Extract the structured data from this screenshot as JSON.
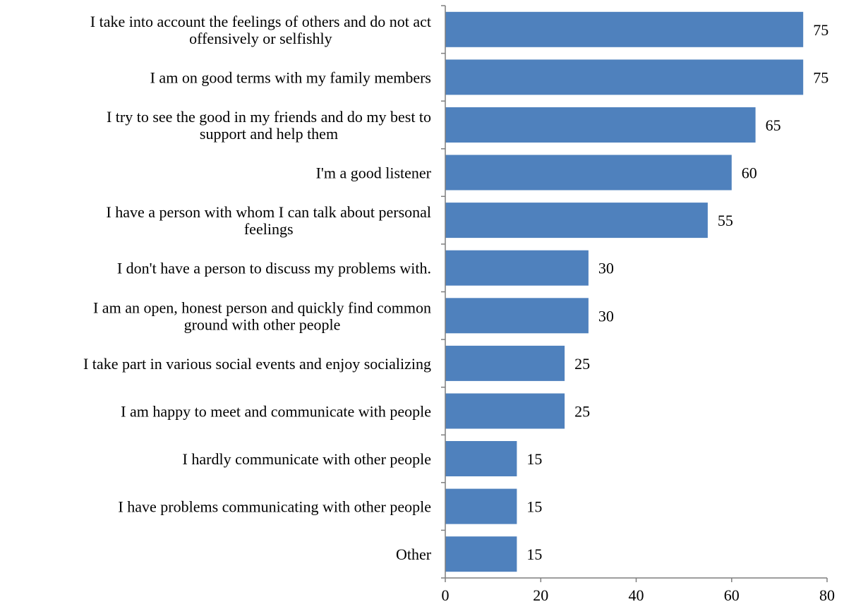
{
  "chart_data": {
    "type": "bar",
    "orientation": "horizontal",
    "categories": [
      [
        "I take into account the feelings of others and do not act",
        "offensively or selfishly"
      ],
      [
        "I am on good terms with my family members"
      ],
      [
        "I try to see the good in my friends and do my best to",
        "support and help them"
      ],
      [
        "I'm a good listener"
      ],
      [
        "I have a person with whom I can talk about personal",
        "feelings"
      ],
      [
        "I don't have a person to discuss my problems with."
      ],
      [
        "I am an open, honest person and quickly find common",
        "ground with other people"
      ],
      [
        "I take part in various social events and enjoy socializing"
      ],
      [
        "I am happy to meet and communicate with people"
      ],
      [
        "I hardly communicate with other people"
      ],
      [
        "I have problems communicating with other people"
      ],
      [
        "Other"
      ]
    ],
    "values": [
      75,
      75,
      65,
      60,
      55,
      30,
      30,
      25,
      25,
      15,
      15,
      15
    ],
    "data_labels": [
      "75",
      "75",
      "65",
      "60",
      "55",
      "30",
      "30",
      "25",
      "25",
      "15",
      "15",
      "15"
    ],
    "xlim": [
      0,
      80
    ],
    "xticks": [
      0,
      20,
      40,
      60,
      80
    ],
    "xtick_labels": [
      "0",
      "20",
      "40",
      "60",
      "80"
    ],
    "title": "",
    "xlabel": "",
    "ylabel": "",
    "grid": false,
    "legend": "none",
    "bar_color": "#4f81bd"
  }
}
